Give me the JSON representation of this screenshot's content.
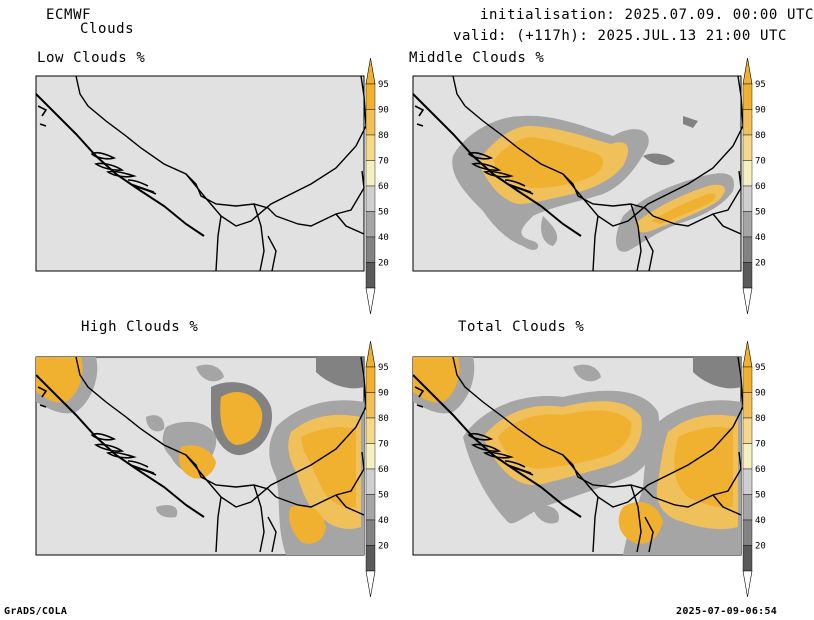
{
  "header": {
    "model": "ECMWF",
    "product": "Clouds",
    "init": "initialisation: 2025.07.09. 00:00 UTC",
    "valid": "valid: (+117h): 2025.JUL.13 21:00 UTC"
  },
  "panels": [
    {
      "title": "Low Clouds %"
    },
    {
      "title": "Middle Clouds %"
    },
    {
      "title": "High Clouds %"
    },
    {
      "title": "Total Clouds %"
    }
  ],
  "colorbar": {
    "levels": [
      "95",
      "90",
      "80",
      "70",
      "60",
      "50",
      "40",
      "20"
    ],
    "colors": [
      "#f0b030",
      "#f0c05a",
      "#f5d88a",
      "#f5f0c0",
      "#cfcfcf",
      "#a5a5a5",
      "#828282",
      "#5a5a5a"
    ]
  },
  "footer": {
    "left": "GrADS/COLA",
    "right": "2025-07-09-06:54"
  }
}
